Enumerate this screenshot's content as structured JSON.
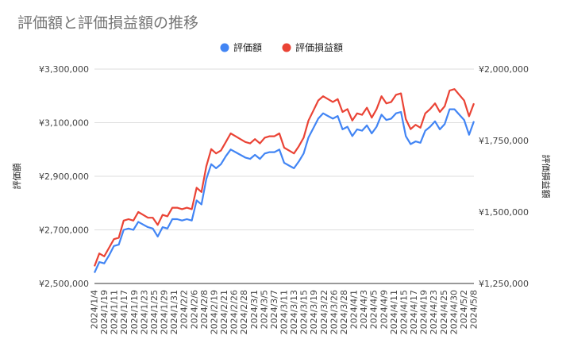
{
  "chart_data": {
    "type": "line",
    "title": "評価額と評価損益額の推移",
    "y_left": {
      "label": "評価額",
      "min": 2500000,
      "max": 3300000,
      "ticks": [
        {
          "value": 2500000,
          "label": "¥2,500,000"
        },
        {
          "value": 2700000,
          "label": "¥2,700,000"
        },
        {
          "value": 2900000,
          "label": "¥2,900,000"
        },
        {
          "value": 3100000,
          "label": "¥3,100,000"
        },
        {
          "value": 3300000,
          "label": "¥3,300,000"
        }
      ]
    },
    "y_right": {
      "label": "評価損益額",
      "min": 1250000,
      "max": 2000000,
      "ticks": [
        {
          "value": 1250000,
          "label": "¥1,250,000"
        },
        {
          "value": 1500000,
          "label": "¥1,500,000"
        },
        {
          "value": 1750000,
          "label": "¥1,750,000"
        },
        {
          "value": 2000000,
          "label": "¥2,000,000"
        }
      ]
    },
    "x_tick_labels": [
      "2024/1/4",
      "2024/1/19",
      "2024/1/11",
      "2024/1/17",
      "2024/1/19",
      "2024/1/23",
      "2024/1/25",
      "2024/1/29",
      "2024/1/31",
      "2024/2/2",
      "2024/2/6",
      "2024/2/8",
      "2024/2/19",
      "2024/2/21",
      "2024/2/26",
      "2024/2/28",
      "2024/3/1",
      "2024/3/5",
      "2024/3/7",
      "2024/3/11",
      "2024/3/13",
      "2024/3/15",
      "2024/3/19",
      "2024/3/22",
      "2024/3/26",
      "2024/3/28",
      "2024/4/1",
      "2024/4/3",
      "2024/4/5",
      "2024/4/9",
      "2024/4/11",
      "2024/4/15",
      "2024/4/17",
      "2024/4/19",
      "2024/4/23",
      "2024/4/25",
      "2024/4/30",
      "2024/5/2",
      "2024/5/8"
    ],
    "grid": true,
    "legend_position": "top",
    "series": [
      {
        "name": "評価額",
        "axis": "left",
        "color": "#4285f4",
        "values": [
          2540000,
          2580000,
          2575000,
          2605000,
          2640000,
          2645000,
          2700000,
          2705000,
          2700000,
          2730000,
          2720000,
          2710000,
          2705000,
          2675000,
          2710000,
          2705000,
          2740000,
          2740000,
          2735000,
          2740000,
          2735000,
          2810000,
          2795000,
          2890000,
          2945000,
          2930000,
          2945000,
          2975000,
          3000000,
          2990000,
          2980000,
          2970000,
          2965000,
          2980000,
          2965000,
          2985000,
          2990000,
          2990000,
          3000000,
          2950000,
          2940000,
          2930000,
          2955000,
          2985000,
          3045000,
          3080000,
          3115000,
          3135000,
          3125000,
          3115000,
          3125000,
          3075000,
          3085000,
          3050000,
          3075000,
          3070000,
          3090000,
          3060000,
          3085000,
          3130000,
          3110000,
          3115000,
          3135000,
          3140000,
          3050000,
          3020000,
          3030000,
          3025000,
          3070000,
          3085000,
          3105000,
          3075000,
          3095000,
          3150000,
          3150000,
          3130000,
          3110000,
          3055000,
          3105000
        ]
      },
      {
        "name": "評価損益額",
        "axis": "right",
        "color": "#ea4335",
        "values": [
          1310000,
          1355000,
          1345000,
          1375000,
          1405000,
          1410000,
          1470000,
          1475000,
          1470000,
          1500000,
          1490000,
          1480000,
          1480000,
          1455000,
          1490000,
          1485000,
          1515000,
          1515000,
          1510000,
          1515000,
          1510000,
          1585000,
          1570000,
          1660000,
          1720000,
          1705000,
          1715000,
          1745000,
          1775000,
          1765000,
          1755000,
          1745000,
          1740000,
          1755000,
          1740000,
          1760000,
          1765000,
          1765000,
          1775000,
          1725000,
          1715000,
          1705000,
          1730000,
          1760000,
          1820000,
          1855000,
          1890000,
          1905000,
          1895000,
          1885000,
          1895000,
          1850000,
          1860000,
          1820000,
          1845000,
          1840000,
          1865000,
          1830000,
          1860000,
          1905000,
          1880000,
          1885000,
          1910000,
          1915000,
          1825000,
          1790000,
          1805000,
          1795000,
          1845000,
          1860000,
          1880000,
          1850000,
          1870000,
          1925000,
          1930000,
          1910000,
          1890000,
          1835000,
          1880000
        ]
      }
    ]
  }
}
